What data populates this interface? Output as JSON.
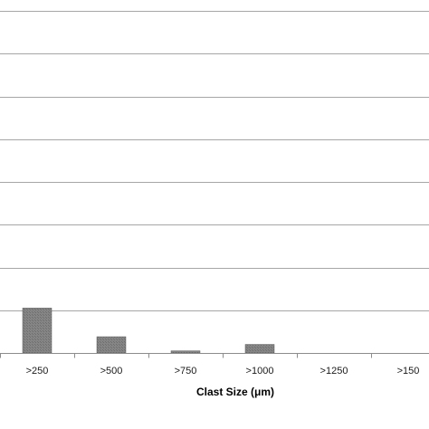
{
  "chart_data": {
    "type": "bar",
    "categories": [
      ">250",
      ">500",
      ">750",
      ">1000",
      ">1250",
      ">150"
    ],
    "values": [
      10.5,
      3.8,
      0.5,
      2.0,
      0,
      0
    ],
    "title": "",
    "xlabel": "Clast Size (μm)",
    "ylabel": "",
    "ylim": [
      0,
      80
    ],
    "gridlines": [
      0,
      10,
      20,
      30,
      40,
      50,
      60,
      70,
      80
    ],
    "grid": true,
    "legend": "none",
    "colors": {
      "bar_fill": "#7f7f7f",
      "bar_stroke": "#595959",
      "grid": "#a6a6a6",
      "axis": "#8c8c8c"
    }
  }
}
